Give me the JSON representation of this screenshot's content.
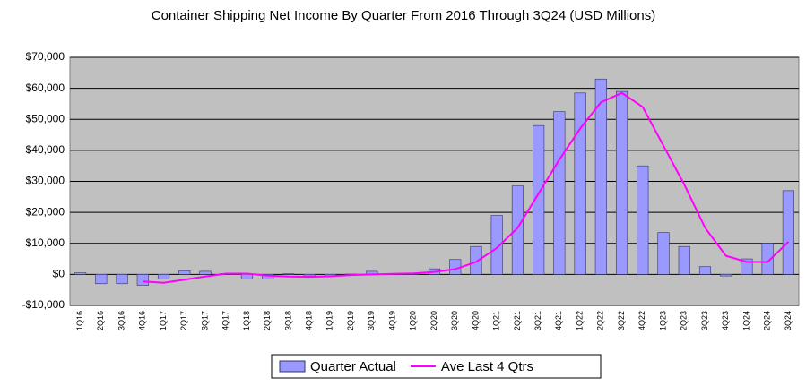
{
  "chart_data": {
    "type": "bar_line",
    "title": "Container Shipping Net Income By Quarter From 2016 Through 3Q24 (USD Millions)",
    "categories": [
      "1Q16",
      "2Q16",
      "3Q16",
      "4Q16",
      "1Q17",
      "2Q17",
      "3Q17",
      "4Q17",
      "1Q18",
      "2Q18",
      "3Q18",
      "4Q18",
      "1Q19",
      "2Q19",
      "3Q19",
      "4Q19",
      "1Q20",
      "2Q20",
      "3Q20",
      "4Q20",
      "1Q21",
      "2Q21",
      "3Q21",
      "4Q21",
      "1Q22",
      "2Q22",
      "3Q22",
      "4Q22",
      "1Q23",
      "2Q23",
      "3Q23",
      "4Q23",
      "1Q24",
      "2Q24",
      "3Q24"
    ],
    "series": [
      {
        "name": "Quarter Actual",
        "kind": "bar",
        "color": "#9999ff",
        "values": [
          500,
          -3000,
          -3000,
          -3500,
          -1500,
          1200,
          1000,
          300,
          -1500,
          -1500,
          200,
          -500,
          -500,
          100,
          1000,
          100,
          200,
          1800,
          4800,
          9000,
          19000,
          28500,
          48000,
          52500,
          58500,
          63000,
          59000,
          35000,
          13500,
          9000,
          2500,
          -500,
          5000,
          10000,
          27000
        ]
      },
      {
        "name": "Ave Last 4 Qtrs",
        "kind": "line",
        "color": "#ff00ff",
        "values": [
          null,
          null,
          null,
          -2250,
          -2700,
          -1700,
          -700,
          250,
          250,
          -400,
          -700,
          -800,
          -600,
          -200,
          0,
          200,
          300,
          800,
          1700,
          4000,
          8500,
          15000,
          26000,
          37000,
          47000,
          55500,
          58500,
          54000,
          41500,
          29000,
          15000,
          6000,
          4000,
          4000,
          10500
        ]
      }
    ],
    "ylim": [
      -10000,
      70000
    ],
    "yticks": [
      {
        "value": -10000,
        "label": "-$10,000"
      },
      {
        "value": 0,
        "label": "$0"
      },
      {
        "value": 10000,
        "label": "$10,000"
      },
      {
        "value": 20000,
        "label": "$20,000"
      },
      {
        "value": 30000,
        "label": "$30,000"
      },
      {
        "value": 40000,
        "label": "$40,000"
      },
      {
        "value": 50000,
        "label": "$50,000"
      },
      {
        "value": 60000,
        "label": "$60,000"
      },
      {
        "value": 70000,
        "label": "$70,000"
      }
    ],
    "grid": true
  }
}
